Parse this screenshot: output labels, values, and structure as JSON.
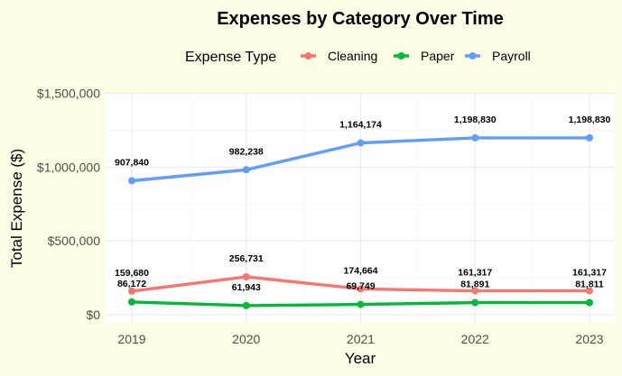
{
  "chart_data": {
    "type": "line",
    "title": "Expenses by Category Over Time",
    "xlabel": "Year",
    "ylabel": "Total Expense ($)",
    "legend_title": "Expense Type",
    "legend_position": "top",
    "grid": true,
    "ylim": [
      0,
      1500000
    ],
    "xlim": [
      2019,
      2023
    ],
    "x": [
      2019,
      2020,
      2021,
      2022,
      2023
    ],
    "x_tick_labels": [
      "2019",
      "2020",
      "2021",
      "2022",
      "2023"
    ],
    "y_ticks": [
      0,
      500000,
      1000000,
      1500000
    ],
    "y_tick_labels": [
      "$0",
      "$500,000",
      "$1,000,000",
      "$1,500,000"
    ],
    "series": [
      {
        "name": "Cleaning",
        "color": "#f8766d",
        "values": [
          159680,
          256731,
          174664,
          161317,
          161317
        ],
        "labels": [
          "159,680",
          "256,731",
          "174,664",
          "161,317",
          "161,317"
        ]
      },
      {
        "name": "Paper",
        "color": "#00ba38",
        "values": [
          86172,
          61943,
          69749,
          81891,
          81811
        ],
        "labels": [
          "86,172",
          "61,943",
          "69,749",
          "81,891",
          "81,811"
        ]
      },
      {
        "name": "Payroll",
        "color": "#619cff",
        "values": [
          907840,
          982238,
          1164174,
          1198830,
          1198830
        ],
        "labels": [
          "907,840",
          "982,238",
          "1,164,174",
          "1,198,830",
          "1,198,830"
        ]
      }
    ]
  }
}
